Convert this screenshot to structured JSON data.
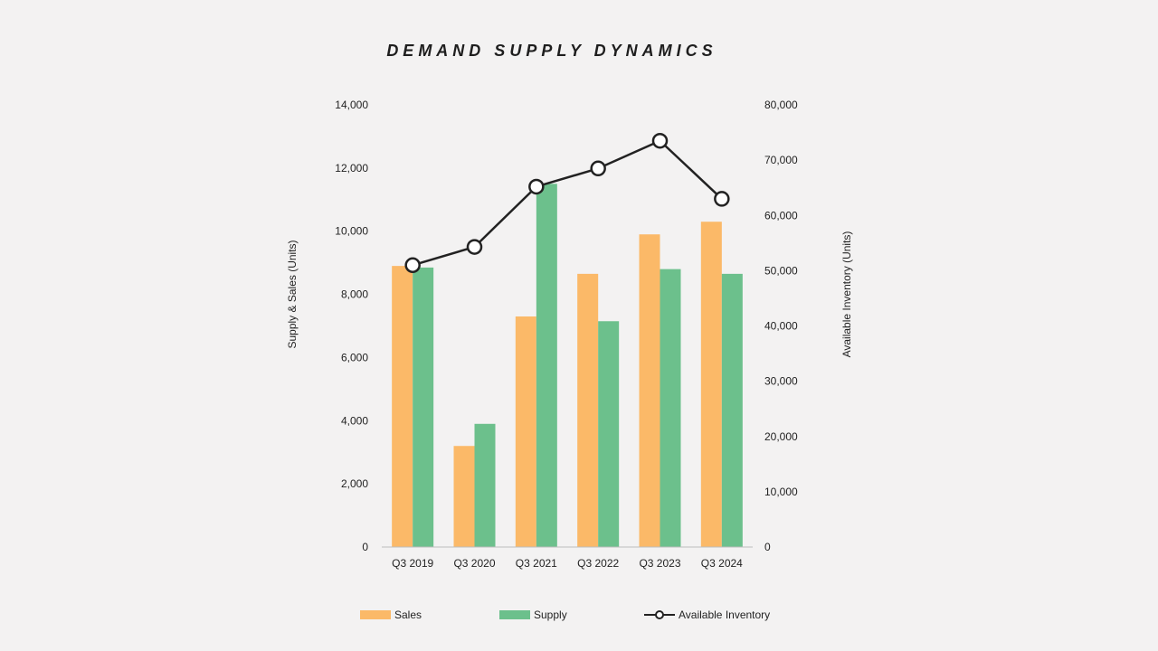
{
  "chart_data": {
    "type": "bar",
    "title": "DEMAND SUPPLY DYNAMICS",
    "categories": [
      "Q3 2019",
      "Q3 2020",
      "Q3 2021",
      "Q3 2022",
      "Q3 2023",
      "Q3 2024"
    ],
    "ylabel": "Supply & Sales (Units)",
    "ylabel_right": "Available Inventory (Units)",
    "ylim": [
      0,
      14000
    ],
    "ylim_right": [
      0,
      80000
    ],
    "yticks": [
      "0",
      "2,000",
      "4,000",
      "6,000",
      "8,000",
      "10,000",
      "12,000",
      "14,000"
    ],
    "yticks_values": [
      0,
      2000,
      4000,
      6000,
      8000,
      10000,
      12000,
      14000
    ],
    "yticks_right": [
      "0",
      "10,000",
      "20,000",
      "30,000",
      "40,000",
      "50,000",
      "60,000",
      "70,000",
      "80,000"
    ],
    "yticks_right_values": [
      0,
      10000,
      20000,
      30000,
      40000,
      50000,
      60000,
      70000,
      80000
    ],
    "series": [
      {
        "name": "Sales",
        "type": "bar",
        "axis": "left",
        "color": "#fbb968",
        "values": [
          8900,
          3200,
          7300,
          8650,
          9900,
          10300
        ]
      },
      {
        "name": "Supply",
        "type": "bar",
        "axis": "left",
        "color": "#6cc08c",
        "values": [
          8850,
          3900,
          11500,
          7150,
          8800,
          8650
        ]
      },
      {
        "name": "Available Inventory",
        "type": "line",
        "axis": "right",
        "color": "#222222",
        "values": [
          51000,
          54300,
          65200,
          68500,
          73500,
          63000
        ]
      }
    ],
    "grid": false,
    "legend_position": "bottom"
  }
}
